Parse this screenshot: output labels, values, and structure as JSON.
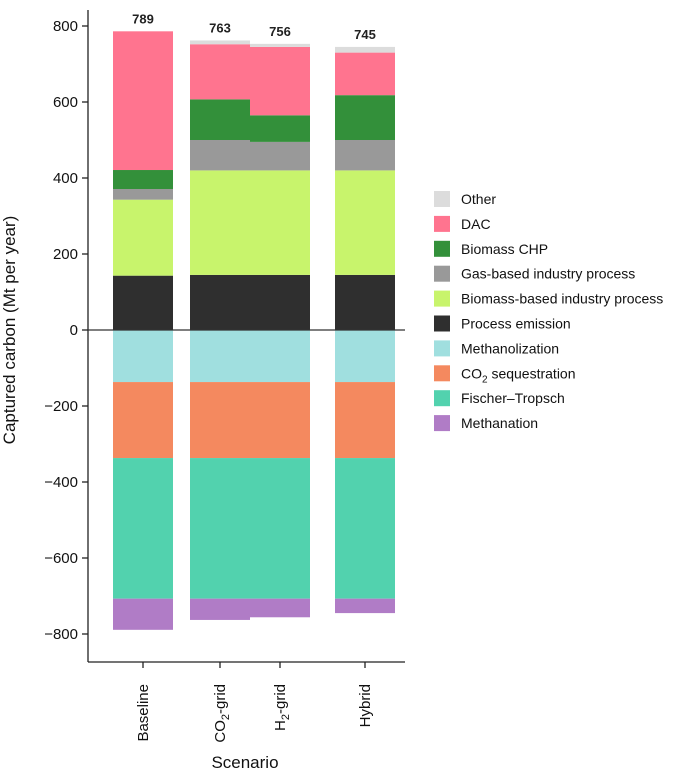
{
  "chart_data": {
    "type": "bar",
    "stacked": true,
    "categories": [
      "Baseline",
      "CO2-grid",
      "H2-grid",
      "Hybrid"
    ],
    "category_display": [
      {
        "main": "Baseline",
        "sub": "",
        "rest": ""
      },
      {
        "main": "CO",
        "sub": "2",
        "rest": "-grid"
      },
      {
        "main": "H",
        "sub": "2",
        "rest": "-grid"
      },
      {
        "main": "Hybrid",
        "sub": "",
        "rest": ""
      }
    ],
    "totals": [
      789,
      763,
      756,
      745
    ],
    "ylabel": "Captured carbon (Mt per year)",
    "xlabel": "Scenario",
    "ylim": [
      -850,
      810
    ],
    "yticks": [
      800,
      600,
      400,
      200,
      0,
      -200,
      -400,
      -600,
      -800
    ],
    "ytick_labels": [
      "800",
      "600",
      "400",
      "200",
      "0",
      "−200",
      "−400",
      "−600",
      "−800"
    ],
    "positive_series": [
      {
        "name": "Process emission",
        "color": "#2f2f2f",
        "values": [
          143,
          145,
          145,
          145
        ]
      },
      {
        "name": "Biomass-based industry process",
        "color": "#c8f46c",
        "values": [
          200,
          275,
          275,
          275
        ]
      },
      {
        "name": "Gas-based industry process",
        "color": "#999999",
        "values": [
          28,
          80,
          75,
          80
        ]
      },
      {
        "name": "Biomass CHP",
        "color": "#33903a",
        "values": [
          50,
          107,
          70,
          118
        ]
      },
      {
        "name": "DAC",
        "color": "#ff748f",
        "values": [
          365,
          145,
          180,
          112
        ]
      },
      {
        "name": "Other",
        "color": "#dcdcdc",
        "values": [
          0,
          10,
          8,
          15
        ]
      }
    ],
    "negative_series": [
      {
        "name": "Methanolization",
        "color": "#a0dfdf",
        "values": [
          -137,
          -137,
          -137,
          -137
        ]
      },
      {
        "name": "CO2 sequestration",
        "color": "#f4895f",
        "values": [
          -200,
          -200,
          -200,
          -200
        ]
      },
      {
        "name": "Fischer–Tropsch",
        "color": "#52d2ae",
        "values": [
          -370,
          -370,
          -370,
          -370
        ]
      },
      {
        "name": "Methanation",
        "color": "#b07cc6",
        "values": [
          -82,
          -56,
          -49,
          -38
        ]
      }
    ],
    "legend_position": "right",
    "legend": [
      {
        "name": "Other",
        "main": "Other",
        "sub": "",
        "rest": "",
        "color": "#dcdcdc"
      },
      {
        "name": "DAC",
        "main": "DAC",
        "sub": "",
        "rest": "",
        "color": "#ff748f"
      },
      {
        "name": "Biomass CHP",
        "main": "Biomass CHP",
        "sub": "",
        "rest": "",
        "color": "#33903a"
      },
      {
        "name": "Gas-based industry process",
        "main": "Gas-based industry process",
        "sub": "",
        "rest": "",
        "color": "#999999"
      },
      {
        "name": "Biomass-based industry process",
        "main": "Biomass-based industry process",
        "sub": "",
        "rest": "",
        "color": "#c8f46c"
      },
      {
        "name": "Process emission",
        "main": "Process emission",
        "sub": "",
        "rest": "",
        "color": "#2f2f2f"
      },
      {
        "name": "Methanolization",
        "main": "Methanolization",
        "sub": "",
        "rest": "",
        "color": "#a0dfdf"
      },
      {
        "name": "CO2 sequestration",
        "main": "CO",
        "sub": "2",
        "rest": " sequestration",
        "color": "#f4895f"
      },
      {
        "name": "Fischer–Tropsch",
        "main": "Fischer–Tropsch",
        "sub": "",
        "rest": "",
        "color": "#52d2ae"
      },
      {
        "name": "Methanation",
        "main": "Methanation",
        "sub": "",
        "rest": "",
        "color": "#b07cc6"
      }
    ]
  }
}
